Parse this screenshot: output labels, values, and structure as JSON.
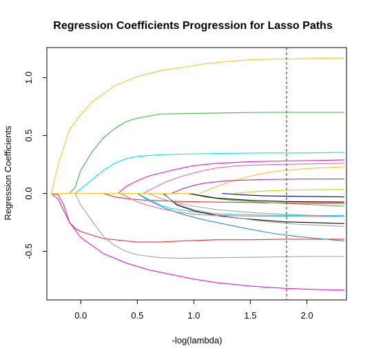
{
  "chart_data": {
    "type": "line",
    "title": "Regression Coefficients Progression for Lasso Paths",
    "xlabel": "-log(lambda)",
    "ylabel": "Regression Coefficients",
    "xlim": [
      -0.3,
      2.35
    ],
    "ylim": [
      -0.92,
      1.26
    ],
    "x_ticks": [
      "0.0",
      "0.5",
      "1.0",
      "1.5",
      "2.0"
    ],
    "y_ticks": [
      "-0.5",
      "0.0",
      "0.5",
      "1.0"
    ],
    "grid": false,
    "legend": "none",
    "reference_line": {
      "x": 1.82,
      "style": "dashed",
      "color": "#555555"
    },
    "series": [
      {
        "color": "#ffc125",
        "points": [
          [
            -0.26,
            0
          ],
          [
            -0.2,
            0.25
          ],
          [
            -0.1,
            0.55
          ],
          [
            0,
            0.68
          ],
          [
            0.1,
            0.79
          ],
          [
            0.3,
            0.93
          ],
          [
            0.5,
            1.01
          ],
          [
            0.7,
            1.06
          ],
          [
            0.9,
            1.09
          ],
          [
            1.1,
            1.12
          ],
          [
            1.3,
            1.14
          ],
          [
            1.5,
            1.155
          ],
          [
            1.7,
            1.16
          ],
          [
            2.0,
            1.165
          ],
          [
            2.33,
            1.17
          ]
        ]
      },
      {
        "color": "#ee2c2c",
        "points": [
          [
            -0.26,
            0
          ],
          [
            -0.2,
            -0.01
          ],
          [
            -0.15,
            -0.1
          ],
          [
            -0.1,
            -0.25
          ],
          [
            -0.05,
            -0.3
          ],
          [
            0,
            -0.33
          ],
          [
            0.2,
            -0.39
          ],
          [
            0.5,
            -0.42
          ],
          [
            0.7,
            -0.42
          ],
          [
            0.9,
            -0.41
          ],
          [
            1.2,
            -0.4
          ],
          [
            1.5,
            -0.4
          ],
          [
            1.8,
            -0.395
          ],
          [
            2.33,
            -0.395
          ]
        ]
      },
      {
        "color": "#e01ccd",
        "points": [
          [
            -0.26,
            0
          ],
          [
            -0.2,
            -0.05
          ],
          [
            -0.15,
            -0.15
          ],
          [
            -0.1,
            -0.25
          ],
          [
            0,
            -0.38
          ],
          [
            0.2,
            -0.52
          ],
          [
            0.4,
            -0.6
          ],
          [
            0.6,
            -0.66
          ],
          [
            0.8,
            -0.7
          ],
          [
            1.0,
            -0.74
          ],
          [
            1.2,
            -0.77
          ],
          [
            1.5,
            -0.8
          ],
          [
            1.8,
            -0.82
          ],
          [
            2.1,
            -0.83
          ],
          [
            2.33,
            -0.835
          ]
        ]
      },
      {
        "color": "#41b441",
        "points": [
          [
            -0.1,
            0
          ],
          [
            -0.05,
            0.05
          ],
          [
            0,
            0.2
          ],
          [
            0.1,
            0.36
          ],
          [
            0.2,
            0.48
          ],
          [
            0.3,
            0.56
          ],
          [
            0.4,
            0.62
          ],
          [
            0.5,
            0.65
          ],
          [
            0.7,
            0.685
          ],
          [
            0.9,
            0.69
          ],
          [
            1.2,
            0.695
          ],
          [
            1.6,
            0.7
          ],
          [
            2.0,
            0.7
          ],
          [
            2.33,
            0.7
          ]
        ]
      },
      {
        "color": "#00e5ee",
        "points": [
          [
            -0.05,
            0
          ],
          [
            0,
            0.04
          ],
          [
            0.1,
            0.12
          ],
          [
            0.2,
            0.2
          ],
          [
            0.3,
            0.26
          ],
          [
            0.4,
            0.3
          ],
          [
            0.5,
            0.32
          ],
          [
            0.7,
            0.335
          ],
          [
            0.9,
            0.34
          ],
          [
            1.2,
            0.345
          ],
          [
            1.6,
            0.35
          ],
          [
            2.0,
            0.35
          ],
          [
            2.33,
            0.355
          ]
        ]
      },
      {
        "color": "#a0a0a0",
        "points": [
          [
            -0.05,
            0
          ],
          [
            0,
            -0.1
          ],
          [
            0.1,
            -0.24
          ],
          [
            0.2,
            -0.37
          ],
          [
            0.3,
            -0.45
          ],
          [
            0.4,
            -0.5
          ],
          [
            0.5,
            -0.53
          ],
          [
            0.7,
            -0.555
          ],
          [
            0.9,
            -0.56
          ],
          [
            1.2,
            -0.555
          ],
          [
            1.6,
            -0.55
          ],
          [
            2.0,
            -0.545
          ],
          [
            2.33,
            -0.545
          ]
        ]
      },
      {
        "color": "#e01ccd",
        "points": [
          [
            0.33,
            0
          ],
          [
            0.4,
            0.06
          ],
          [
            0.5,
            0.11
          ],
          [
            0.6,
            0.15
          ],
          [
            0.8,
            0.2
          ],
          [
            1.0,
            0.24
          ],
          [
            1.2,
            0.26
          ],
          [
            1.5,
            0.275
          ],
          [
            1.8,
            0.28
          ],
          [
            2.1,
            0.285
          ],
          [
            2.33,
            0.29
          ]
        ]
      },
      {
        "color": "#ee6a8f",
        "points": [
          [
            0.55,
            0
          ],
          [
            0.65,
            0.05
          ],
          [
            0.75,
            0.1
          ],
          [
            0.9,
            0.15
          ],
          [
            1.05,
            0.19
          ],
          [
            1.2,
            0.22
          ],
          [
            1.4,
            0.24
          ],
          [
            1.7,
            0.25
          ],
          [
            2.0,
            0.255
          ],
          [
            2.33,
            0.26
          ]
        ]
      },
      {
        "color": "#ffc125",
        "points": [
          [
            1.05,
            0
          ],
          [
            1.2,
            0.06
          ],
          [
            1.35,
            0.11
          ],
          [
            1.5,
            0.15
          ],
          [
            1.65,
            0.18
          ],
          [
            1.8,
            0.2
          ],
          [
            2.0,
            0.215
          ],
          [
            2.33,
            0.23
          ]
        ]
      },
      {
        "color": "#b22bb2",
        "points": [
          [
            0.8,
            0
          ],
          [
            0.9,
            0.04
          ],
          [
            1.0,
            0.07
          ],
          [
            1.1,
            0.09
          ],
          [
            1.3,
            0.11
          ],
          [
            1.6,
            0.12
          ],
          [
            2.0,
            0.125
          ],
          [
            2.33,
            0.125
          ]
        ]
      },
      {
        "color": "#cdcd00",
        "points": [
          [
            1.35,
            0
          ],
          [
            1.6,
            0.02
          ],
          [
            1.9,
            0.03
          ],
          [
            2.33,
            0.035
          ]
        ]
      },
      {
        "color": "#000080",
        "points": [
          [
            1.25,
            0
          ],
          [
            1.4,
            -0.01
          ],
          [
            1.6,
            -0.02
          ],
          [
            1.9,
            -0.025
          ],
          [
            2.33,
            -0.03
          ]
        ]
      },
      {
        "color": "#ee2c2c",
        "points": [
          [
            0.2,
            0
          ],
          [
            0.3,
            -0.03
          ],
          [
            0.45,
            -0.05
          ],
          [
            0.6,
            -0.06
          ],
          [
            0.9,
            -0.07
          ],
          [
            1.2,
            -0.075
          ],
          [
            1.6,
            -0.08
          ],
          [
            2.33,
            -0.085
          ]
        ]
      },
      {
        "color": "#41b441",
        "points": [
          [
            0.95,
            0
          ],
          [
            1.1,
            -0.03
          ],
          [
            1.3,
            -0.055
          ],
          [
            1.5,
            -0.07
          ],
          [
            1.7,
            -0.08
          ],
          [
            2.0,
            -0.095
          ],
          [
            2.33,
            -0.11
          ]
        ]
      },
      {
        "color": "#000000",
        "points": [
          [
            0.95,
            0
          ],
          [
            1.2,
            -0.04
          ],
          [
            1.5,
            -0.06
          ],
          [
            1.8,
            -0.07
          ],
          [
            2.33,
            -0.075
          ]
        ]
      },
      {
        "color": "#00e5ee",
        "points": [
          [
            0.5,
            0
          ],
          [
            0.6,
            -0.05
          ],
          [
            0.7,
            -0.1
          ],
          [
            0.8,
            -0.13
          ],
          [
            1.0,
            -0.16
          ],
          [
            1.2,
            -0.175
          ],
          [
            1.5,
            -0.185
          ],
          [
            1.8,
            -0.19
          ],
          [
            2.33,
            -0.19
          ]
        ]
      },
      {
        "color": "#a0a0a0",
        "points": [
          [
            0.6,
            0
          ],
          [
            0.7,
            -0.04
          ],
          [
            0.8,
            -0.07
          ],
          [
            1.0,
            -0.11
          ],
          [
            1.2,
            -0.14
          ],
          [
            1.5,
            -0.165
          ],
          [
            1.8,
            -0.18
          ],
          [
            2.33,
            -0.2
          ]
        ]
      },
      {
        "color": "#000000",
        "points": [
          [
            0.73,
            0
          ],
          [
            0.85,
            -0.1
          ],
          [
            1.0,
            -0.15
          ],
          [
            1.2,
            -0.19
          ],
          [
            1.4,
            -0.215
          ],
          [
            1.6,
            -0.23
          ],
          [
            1.8,
            -0.245
          ],
          [
            2.33,
            -0.26
          ]
        ]
      },
      {
        "color": "#a0a0a0",
        "points": [
          [
            0.72,
            0
          ],
          [
            0.85,
            -0.09
          ],
          [
            1.0,
            -0.14
          ],
          [
            1.3,
            -0.2
          ],
          [
            1.6,
            -0.24
          ],
          [
            1.9,
            -0.265
          ],
          [
            2.33,
            -0.285
          ]
        ]
      },
      {
        "color": "#1f8fd6",
        "points": [
          [
            0.5,
            0
          ],
          [
            0.6,
            -0.06
          ],
          [
            0.75,
            -0.13
          ],
          [
            0.9,
            -0.18
          ],
          [
            1.1,
            -0.23
          ],
          [
            1.3,
            -0.27
          ],
          [
            1.5,
            -0.31
          ],
          [
            1.7,
            -0.345
          ],
          [
            1.9,
            -0.37
          ],
          [
            2.1,
            -0.39
          ],
          [
            2.33,
            -0.41
          ]
        ]
      },
      {
        "color": "#ee6a8f",
        "points": [
          [
            0.35,
            0
          ],
          [
            0.45,
            -0.05
          ],
          [
            0.55,
            -0.09
          ],
          [
            0.7,
            -0.13
          ],
          [
            0.85,
            -0.16
          ],
          [
            1.0,
            -0.18
          ],
          [
            1.2,
            -0.19
          ],
          [
            1.5,
            -0.195
          ],
          [
            2.33,
            -0.2
          ]
        ]
      },
      {
        "color": "#ffc125",
        "points": [
          [
            -0.26,
            0
          ],
          [
            0.3,
            0
          ],
          [
            0.7,
            0
          ],
          [
            1.0,
            0
          ]
        ]
      }
    ]
  }
}
